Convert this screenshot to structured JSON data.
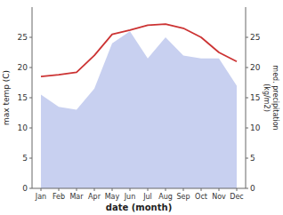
{
  "chart_data": {
    "type": "line",
    "categories": [
      "Jan",
      "Feb",
      "Mar",
      "Apr",
      "May",
      "Jun",
      "Jul",
      "Aug",
      "Sep",
      "Oct",
      "Nov",
      "Dec"
    ],
    "xlabel": "date (month)",
    "ylabel": "max temp (C)",
    "y2label": "med. precipitation\n(kg/m2)",
    "series": [
      {
        "type": "area",
        "axis": "y2",
        "color": "#c8d0f0",
        "values": [
          15.5,
          13.5,
          13.0,
          16.5,
          24.0,
          26.0,
          21.5,
          25.0,
          22.0,
          21.5,
          21.5,
          17.0
        ]
      },
      {
        "type": "line",
        "color": "#cc3333",
        "values": [
          18.5,
          18.8,
          19.2,
          22.0,
          25.5,
          26.2,
          27.0,
          27.2,
          26.5,
          25.0,
          22.5,
          21.0
        ]
      }
    ],
    "ylim": [
      0,
      30
    ],
    "yticks": [
      0,
      5,
      10,
      15,
      20,
      25
    ],
    "y2lim": [
      0,
      30
    ],
    "y2ticks": [
      0,
      5,
      10,
      15,
      20,
      25
    ],
    "grid": false
  }
}
